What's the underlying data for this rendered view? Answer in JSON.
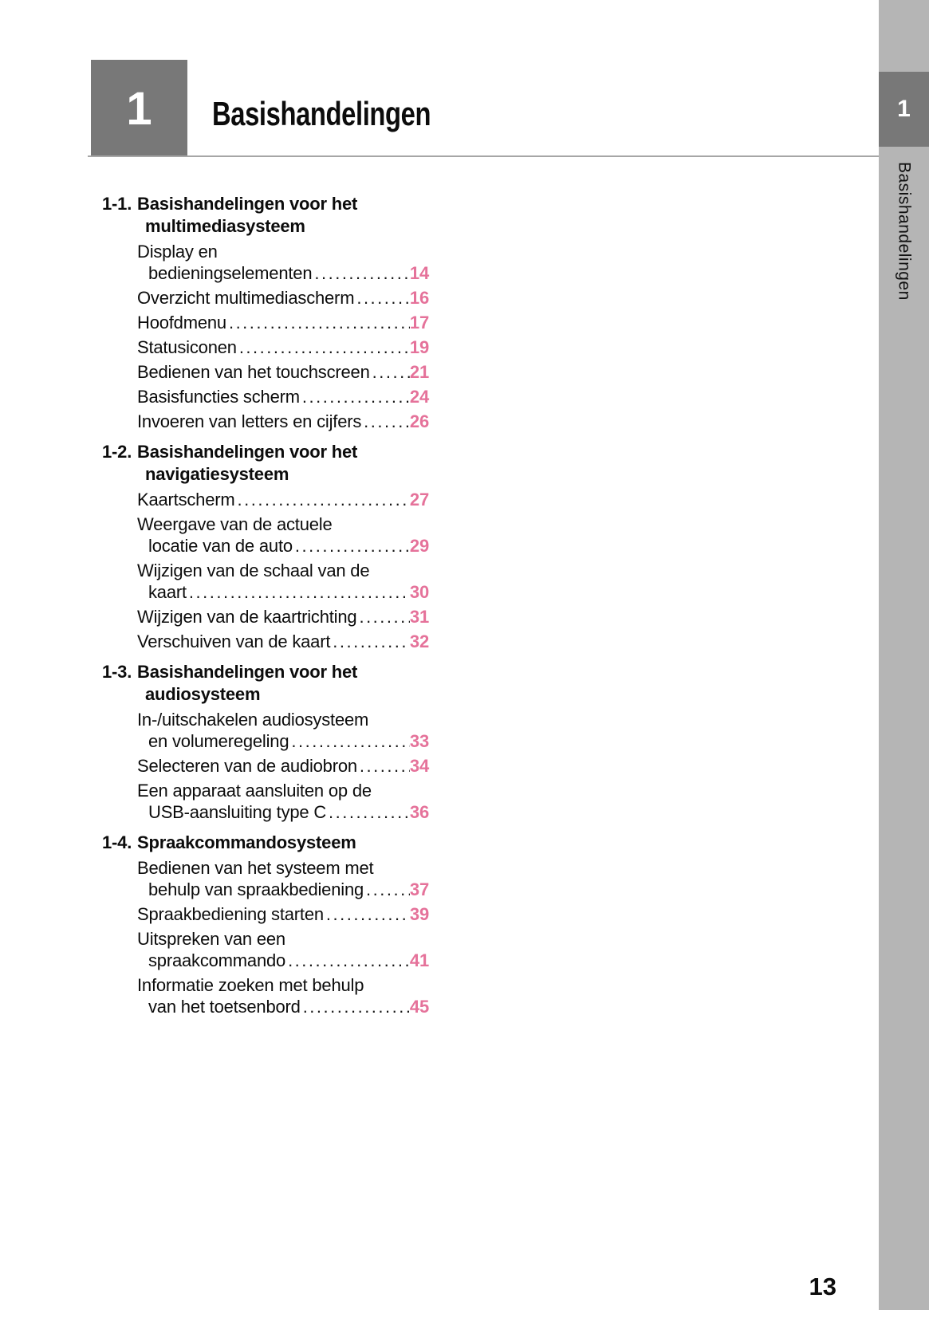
{
  "page": {
    "chapter_number": "1",
    "chapter_title": "Basishandelingen",
    "page_number": "13"
  },
  "sidebar": {
    "tab_number": "1",
    "tab_label": "Basishandelingen"
  },
  "toc": {
    "sections": [
      {
        "number": "1-1.",
        "title_lines": [
          "Basishandelingen voor het",
          "multimediasysteem"
        ],
        "items": [
          {
            "lines": [
              "Display en"
            ],
            "leader_text": "bedieningselementen",
            "page": "14"
          },
          {
            "lines": [],
            "leader_text": "Overzicht multimediascherm",
            "page": "16"
          },
          {
            "lines": [],
            "leader_text": "Hoofdmenu",
            "page": "17"
          },
          {
            "lines": [],
            "leader_text": "Statusiconen",
            "page": "19"
          },
          {
            "lines": [],
            "leader_text": "Bedienen van het touchscreen",
            "page": "21"
          },
          {
            "lines": [],
            "leader_text": "Basisfuncties scherm",
            "page": "24"
          },
          {
            "lines": [],
            "leader_text": "Invoeren van letters en cijfers",
            "page": "26"
          }
        ]
      },
      {
        "number": "1-2.",
        "title_lines": [
          "Basishandelingen voor het",
          "navigatiesysteem"
        ],
        "items": [
          {
            "lines": [],
            "leader_text": "Kaartscherm",
            "page": "27"
          },
          {
            "lines": [
              "Weergave van de actuele"
            ],
            "leader_text": "locatie van de auto",
            "page": "29"
          },
          {
            "lines": [
              "Wijzigen van de schaal van de"
            ],
            "leader_text": "kaart",
            "page": "30"
          },
          {
            "lines": [],
            "leader_text": "Wijzigen van de kaartrichting",
            "page": "31"
          },
          {
            "lines": [],
            "leader_text": "Verschuiven van de kaart",
            "page": "32"
          }
        ]
      },
      {
        "number": "1-3.",
        "title_lines": [
          "Basishandelingen voor het",
          "audiosysteem"
        ],
        "items": [
          {
            "lines": [
              "In-/uitschakelen audiosysteem"
            ],
            "leader_text": "en volumeregeling",
            "page": "33"
          },
          {
            "lines": [],
            "leader_text": "Selecteren van de audiobron",
            "page": "34"
          },
          {
            "lines": [
              "Een apparaat aansluiten op de"
            ],
            "leader_text": "USB-aansluiting type C",
            "page": "36"
          }
        ]
      },
      {
        "number": "1-4.",
        "title_lines": [
          "Spraakcommandosysteem"
        ],
        "items": [
          {
            "lines": [
              "Bedienen van het systeem met"
            ],
            "leader_text": "behulp van spraakbediening",
            "page": "37"
          },
          {
            "lines": [],
            "leader_text": "Spraakbediening starten",
            "page": "39"
          },
          {
            "lines": [
              "Uitspreken van een"
            ],
            "leader_text": "spraakcommando",
            "page": "41"
          },
          {
            "lines": [
              "Informatie zoeken met behulp"
            ],
            "leader_text": "van het toetsenbord",
            "page": "45"
          }
        ]
      }
    ]
  },
  "colors": {
    "page_number_accent": "#e5729a",
    "chapter_box_gray": "#787878",
    "sidebar_gray": "#b5b5b5"
  }
}
